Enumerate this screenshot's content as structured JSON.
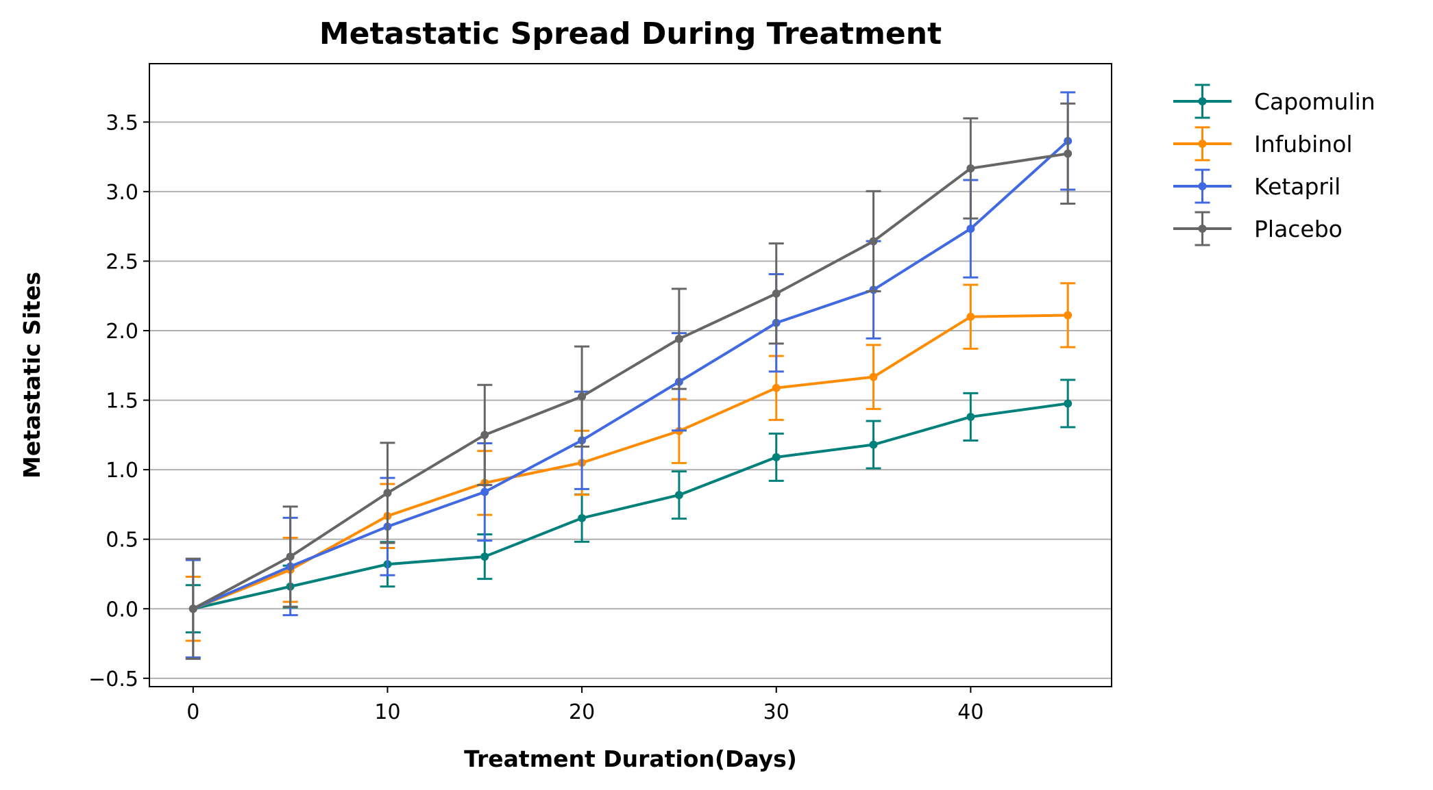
{
  "chart_data": {
    "type": "line",
    "title": "Metastatic Spread During Treatment",
    "xlabel": "Treatment Duration(Days)",
    "ylabel": "Metastatic Sites",
    "xlim": [
      -2.25,
      47.25
    ],
    "ylim": [
      -0.56,
      3.92
    ],
    "xticks": [
      0,
      10,
      20,
      30,
      40
    ],
    "xtick_labels": [
      "0",
      "10",
      "20",
      "30",
      "40"
    ],
    "yticks": [
      -0.5,
      0.0,
      0.5,
      1.0,
      1.5,
      2.0,
      2.5,
      3.0,
      3.5
    ],
    "ytick_labels": [
      "−0.5",
      "0.0",
      "0.5",
      "1.0",
      "1.5",
      "2.0",
      "2.5",
      "3.0",
      "3.5"
    ],
    "grid": "y",
    "legend_position": "outside-right-top",
    "x": [
      0,
      5,
      10,
      15,
      20,
      25,
      30,
      35,
      40,
      45
    ],
    "series": [
      {
        "name": "Capomulin",
        "color": "#00807a",
        "values": [
          0.0,
          0.16,
          0.32,
          0.375,
          0.652,
          0.818,
          1.09,
          1.18,
          1.38,
          1.476
        ],
        "errors": [
          0.17,
          0.15,
          0.16,
          0.16,
          0.17,
          0.17,
          0.17,
          0.17,
          0.17,
          0.17
        ]
      },
      {
        "name": "Infubinol",
        "color": "#ff8c00",
        "values": [
          0.0,
          0.28,
          0.667,
          0.905,
          1.05,
          1.278,
          1.588,
          1.667,
          2.1,
          2.111
        ],
        "errors": [
          0.23,
          0.23,
          0.23,
          0.23,
          0.23,
          0.23,
          0.23,
          0.23,
          0.23,
          0.23
        ]
      },
      {
        "name": "Ketapril",
        "color": "#4169e1",
        "values": [
          0.0,
          0.304,
          0.591,
          0.84,
          1.211,
          1.632,
          2.056,
          2.294,
          2.733,
          3.364
        ],
        "errors": [
          0.35,
          0.35,
          0.35,
          0.35,
          0.35,
          0.35,
          0.35,
          0.35,
          0.35,
          0.35
        ]
      },
      {
        "name": "Placebo",
        "color": "#666666",
        "values": [
          0.0,
          0.375,
          0.833,
          1.25,
          1.526,
          1.941,
          2.267,
          2.643,
          3.167,
          3.273
        ],
        "errors": [
          0.36,
          0.36,
          0.36,
          0.36,
          0.36,
          0.36,
          0.36,
          0.36,
          0.36,
          0.36
        ]
      }
    ]
  }
}
